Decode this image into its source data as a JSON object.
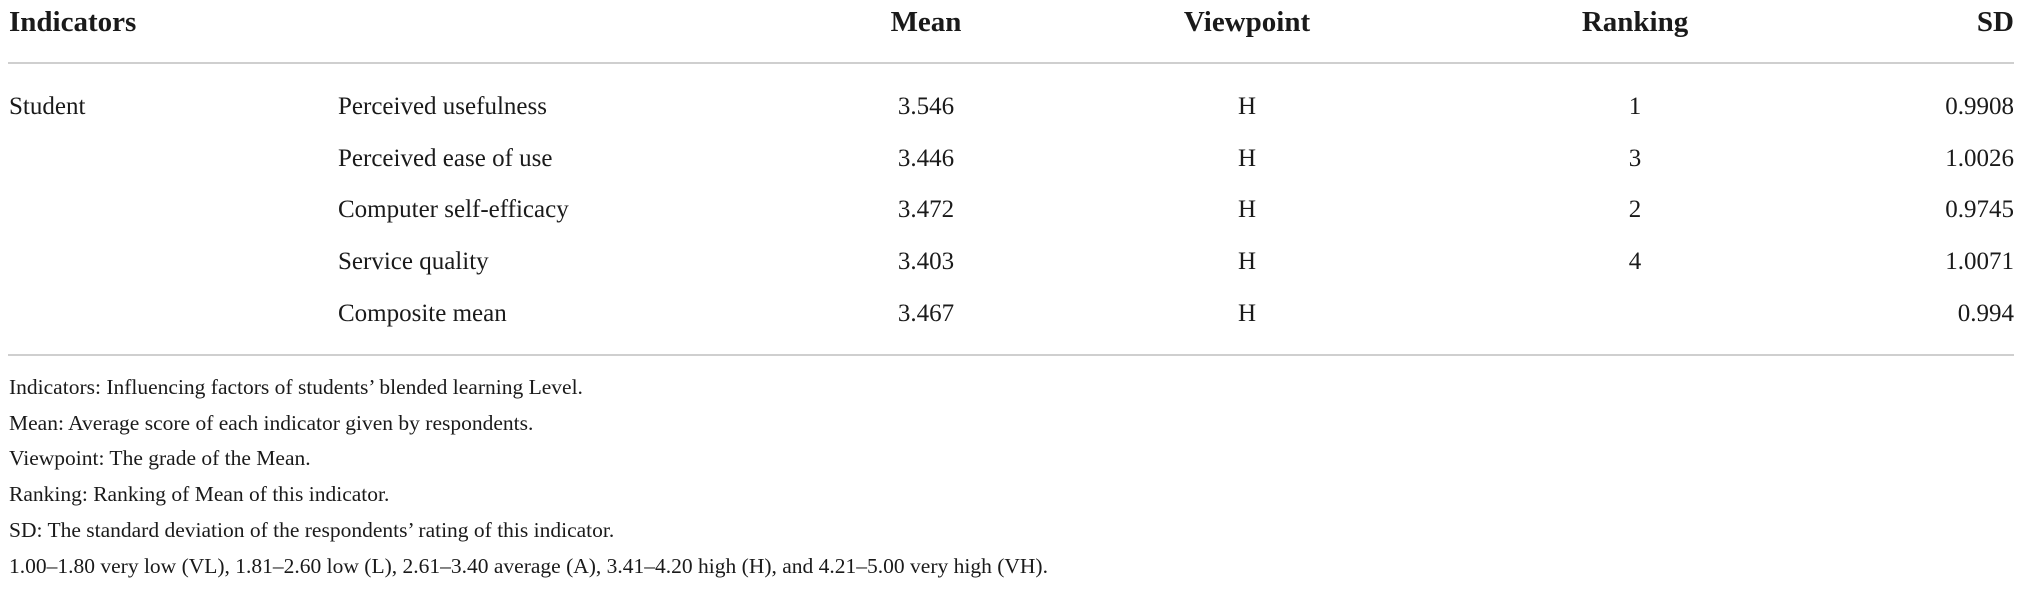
{
  "table": {
    "headers": {
      "indicators": "Indicators",
      "mean": "Mean",
      "viewpoint": "Viewpoint",
      "ranking": "Ranking",
      "sd": "SD"
    },
    "group_label": "Student",
    "rows": [
      {
        "indicator": "Perceived usefulness",
        "mean": "3.546",
        "viewpoint": "H",
        "ranking": "1",
        "sd": "0.9908"
      },
      {
        "indicator": "Perceived ease of use",
        "mean": "3.446",
        "viewpoint": "H",
        "ranking": "3",
        "sd": "1.0026"
      },
      {
        "indicator": "Computer self-efficacy",
        "mean": "3.472",
        "viewpoint": "H",
        "ranking": "2",
        "sd": "0.9745"
      },
      {
        "indicator": "Service quality",
        "mean": "3.403",
        "viewpoint": "H",
        "ranking": "4",
        "sd": "1.0071"
      },
      {
        "indicator": "Composite mean",
        "mean": "3.467",
        "viewpoint": "H",
        "ranking": "",
        "sd": "0.994"
      }
    ]
  },
  "notes": [
    "Indicators: Influencing factors of students’ blended learning Level.",
    "Mean: Average score of each indicator given by respondents.",
    "Viewpoint: The grade of the Mean.",
    "Ranking: Ranking of Mean of this indicator.",
    "SD: The standard deviation of the respondents’ rating of this indicator.",
    "1.00–1.80 very low (VL), 1.81–2.60 low (L), 2.61–3.40 average (A), 3.41–4.20 high (H), and 4.21–5.00 very high (VH)."
  ]
}
